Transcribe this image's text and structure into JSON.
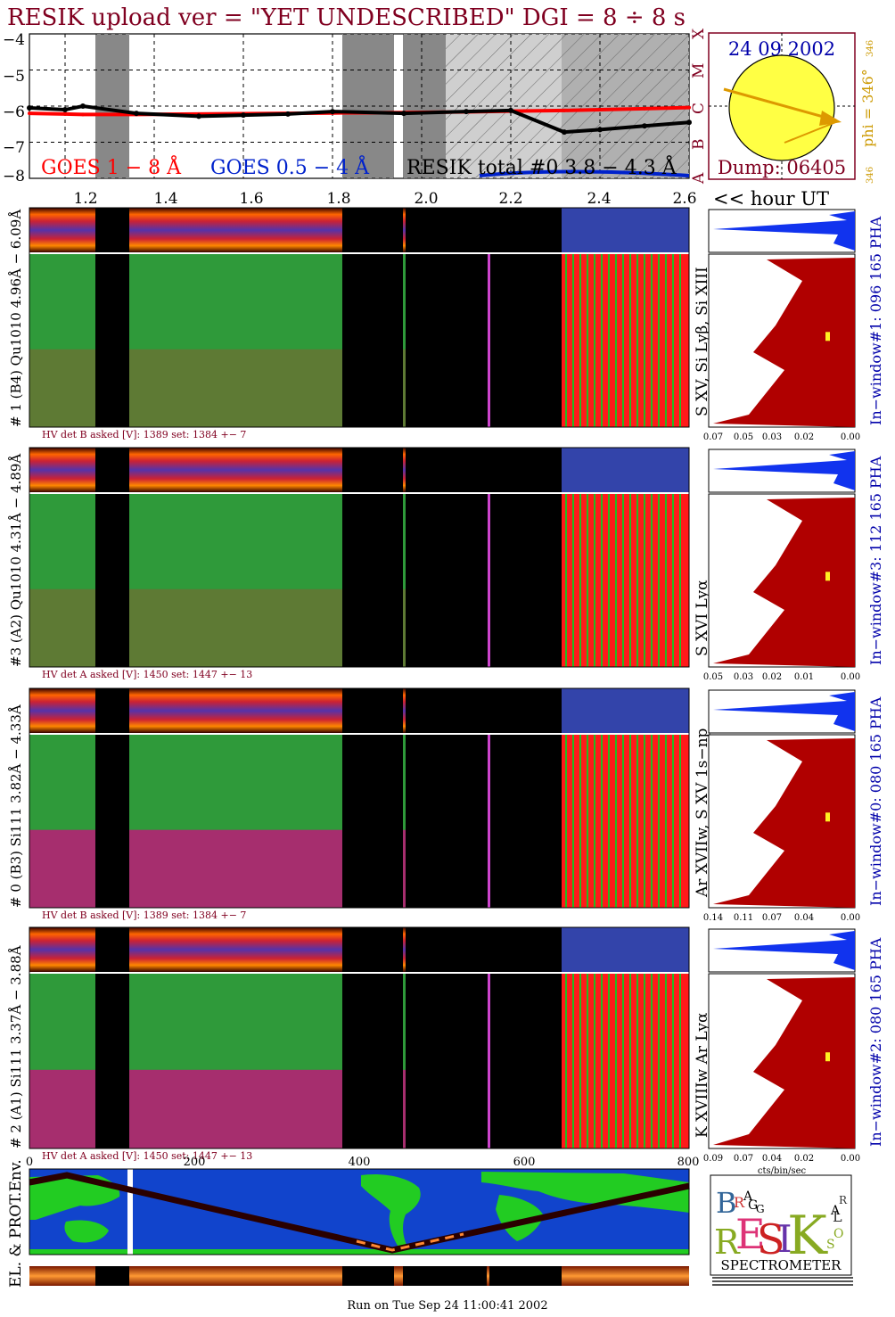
{
  "title": "RESIK upload ver = \"YET UNDESCRIBED\"  DGI =   8 ÷   8 s",
  "colors": {
    "title": "#800020",
    "goes_long": "#ff0000",
    "goes_short": "#0022cc",
    "label_blue": "#0000aa",
    "sun": "#ffff44",
    "sun_arrow": "#dd9900",
    "pha": "#b00000",
    "pha_top": "#1133ee",
    "map_ocean": "#1144cc",
    "map_land": "#22cc22"
  },
  "goes": {
    "ylabels": [
      "−4",
      "−5",
      "−6",
      "−7",
      "−8"
    ],
    "classes": [
      "X",
      "M",
      "C",
      "B",
      "A"
    ],
    "legend_long": "GOES 1 − 8 Å",
    "legend_short": "GOES 0.5 − 4 Å",
    "legend_resik": "RESIK total #0  3.8 − 4.3 Å"
  },
  "sun": {
    "date": "24 09 2002",
    "phi": "phi = 346°",
    "tick_top": "346",
    "tick_bottom": "346",
    "dump": "Dump: 06405"
  },
  "hour_axis": {
    "ticks": [
      "1.2",
      "1.4",
      "1.6",
      "1.8",
      "2.0",
      "2.2",
      "2.4",
      "2.6"
    ],
    "label": "<< hour UT"
  },
  "panels": [
    {
      "left_label": "# 1 (B4) Qu1010 4.96Å − 6.09Å",
      "right_label": "S XV, Si Lyβ, Si XIII",
      "window_label": "In−window#1:  096 165 PHA",
      "hv": "HV det B asked [V]:  1389 set:  1384 +−   7",
      "pha_ticks": [
        "0.07",
        "0.05",
        "0.03",
        "0.02",
        "0.00"
      ]
    },
    {
      "left_label": "#3 (A2) Qu1010  4.31Å − 4.89Å",
      "right_label": "S XVI Lyα",
      "window_label": "In−window#3:  112 165 PHA",
      "hv": "HV det A asked [V]:  1450 set:  1447 +−   13",
      "pha_ticks": [
        "0.05",
        "0.03",
        "0.02",
        "0.01",
        "0.00"
      ]
    },
    {
      "left_label": "# 0 (B3) Si111  3.82Å − 4.33Å",
      "right_label": "Ar XVIIw, S XV 1s−np",
      "window_label": "In−window#0:  080 165 PHA",
      "hv": "HV det B asked [V]:  1389 set:  1384 +−   7",
      "pha_ticks": [
        "0.14",
        "0.11",
        "0.07",
        "0.04",
        "0.00"
      ]
    },
    {
      "left_label": "# 2 (A1) Si111  3.37Å − 3.88Å",
      "right_label": "K XVIIIw  Ar Lyα",
      "window_label": "In−window#2:  080 165 PHA",
      "hv": "HV det A asked [V]:  1450 set:  1447 +−   13",
      "pha_ticks": [
        "0.09",
        "0.07",
        "0.04",
        "0.02",
        "0.00"
      ]
    }
  ],
  "pha_unit": "cts/bin/sec",
  "bottom_axis": {
    "ticks": [
      "0",
      "200",
      "400",
      "600",
      "800"
    ]
  },
  "env_label": "EL. & PROT.Env.",
  "logo": {
    "letters": [
      "B",
      "R",
      "A",
      "G",
      "G",
      "R",
      "E",
      "S",
      "I",
      "K",
      "S",
      "O",
      "L",
      "A",
      "R"
    ],
    "caption": "SPECTROMETER"
  },
  "footer": "Run on Tue Sep 24 11:00:41 2002",
  "chart_data": {
    "type": "line",
    "x": [
      1.12,
      1.2,
      1.24,
      1.36,
      1.5,
      1.6,
      1.7,
      1.8,
      1.96,
      2.1,
      2.2,
      2.32,
      2.4,
      2.5,
      2.6
    ],
    "series": [
      {
        "name": "GOES 1 − 8 Å",
        "values": [
          -6.2,
          -6.22,
          -6.23,
          -6.23,
          -6.22,
          -6.21,
          -6.2,
          -6.19,
          -6.18,
          -6.16,
          -6.14,
          -6.12,
          -6.1,
          -6.07,
          -6.04
        ]
      },
      {
        "name": "RESIK total #0  3.8 − 4.3 Å",
        "values": [
          -6.05,
          -6.1,
          -6.0,
          -6.2,
          -6.28,
          -6.25,
          -6.22,
          -6.15,
          -6.2,
          -6.15,
          -6.12,
          -6.72,
          -6.65,
          -6.55,
          -6.45
        ]
      }
    ],
    "xlim": [
      1.12,
      2.6
    ],
    "ylim": [
      -8,
      -4
    ],
    "x_ticks": [
      1.2,
      1.4,
      1.6,
      1.8,
      2.0,
      2.2,
      2.4,
      2.6
    ],
    "y_ticks": [
      -4,
      -5,
      -6,
      -7,
      -8
    ],
    "data_gaps": [
      [
        1.24,
        1.32
      ],
      [
        1.8,
        1.92
      ],
      [
        1.95,
        2.06
      ]
    ],
    "grid": true
  }
}
